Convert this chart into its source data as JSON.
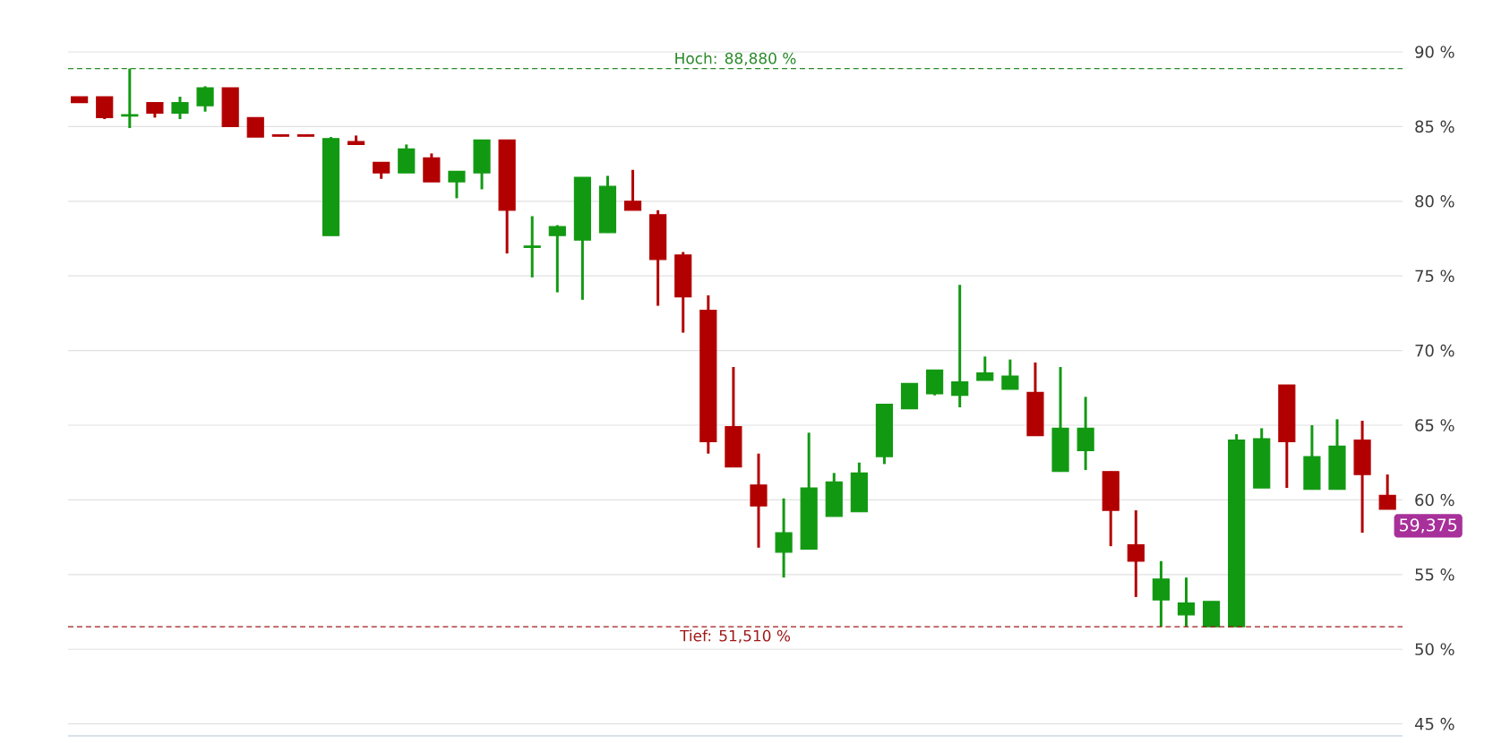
{
  "chart_data": {
    "type": "candlestick",
    "categories": [
      null,
      null,
      null,
      null,
      null,
      null,
      null,
      null,
      null,
      null,
      null,
      null,
      null,
      null,
      null,
      null,
      null,
      null,
      null,
      null,
      null,
      null,
      null,
      null,
      null,
      null,
      null,
      null,
      null,
      null,
      null,
      null,
      null,
      null,
      null,
      null,
      null,
      null,
      null,
      null,
      null,
      null,
      null,
      null,
      null,
      null,
      null,
      null,
      null,
      null,
      null,
      null,
      null
    ],
    "ohlc": [
      [
        87.0,
        87.0,
        86.6,
        86.6
      ],
      [
        87.0,
        87.0,
        85.5,
        85.6
      ],
      [
        85.7,
        88.88,
        84.9,
        85.8
      ],
      [
        86.6,
        86.6,
        85.6,
        85.9
      ],
      [
        85.9,
        87.0,
        85.5,
        86.6
      ],
      [
        86.4,
        87.7,
        86.0,
        87.6
      ],
      [
        87.6,
        87.6,
        85.0,
        85.0
      ],
      [
        85.6,
        85.6,
        84.3,
        84.3
      ],
      [
        84.45,
        84.45,
        84.35,
        84.35
      ],
      [
        84.45,
        84.45,
        84.35,
        84.35
      ],
      [
        77.7,
        84.3,
        77.7,
        84.2
      ],
      [
        84.0,
        84.4,
        83.8,
        83.8
      ],
      [
        82.6,
        82.6,
        81.5,
        81.9
      ],
      [
        81.9,
        83.8,
        81.9,
        83.5
      ],
      [
        82.9,
        83.2,
        81.3,
        81.3
      ],
      [
        81.3,
        82.0,
        80.2,
        82.0
      ],
      [
        81.9,
        84.1,
        80.8,
        84.1
      ],
      [
        84.1,
        84.1,
        76.5,
        79.4
      ],
      [
        76.9,
        79.0,
        74.9,
        77.0
      ],
      [
        77.7,
        78.4,
        73.9,
        78.3
      ],
      [
        77.4,
        81.6,
        73.4,
        81.6
      ],
      [
        77.9,
        81.7,
        77.9,
        81.0
      ],
      [
        80.0,
        82.1,
        79.4,
        79.4
      ],
      [
        79.1,
        79.4,
        73.0,
        76.1
      ],
      [
        76.4,
        76.6,
        71.2,
        73.6
      ],
      [
        72.7,
        73.7,
        63.1,
        63.9
      ],
      [
        64.9,
        68.9,
        62.2,
        62.2
      ],
      [
        61.0,
        63.1,
        56.8,
        59.6
      ],
      [
        56.5,
        60.1,
        54.8,
        57.8
      ],
      [
        56.7,
        64.5,
        56.7,
        60.8
      ],
      [
        58.9,
        61.8,
        58.9,
        61.2
      ],
      [
        59.2,
        62.5,
        59.2,
        61.8
      ],
      [
        62.9,
        66.4,
        62.4,
        66.4
      ],
      [
        66.1,
        67.8,
        66.1,
        67.8
      ],
      [
        67.1,
        68.7,
        67.0,
        68.7
      ],
      [
        67.0,
        74.4,
        66.2,
        67.9
      ],
      [
        68.0,
        69.6,
        68.0,
        68.5
      ],
      [
        67.4,
        69.4,
        67.4,
        68.3
      ],
      [
        67.2,
        69.2,
        64.3,
        64.3
      ],
      [
        61.9,
        68.9,
        61.9,
        64.8
      ],
      [
        63.3,
        66.9,
        62.0,
        64.8
      ],
      [
        61.9,
        61.9,
        56.9,
        59.3
      ],
      [
        57.0,
        59.3,
        53.5,
        55.9
      ],
      [
        53.3,
        55.9,
        51.51,
        54.7
      ],
      [
        52.3,
        54.8,
        51.51,
        53.1
      ],
      [
        51.51,
        53.2,
        51.51,
        53.2
      ],
      [
        51.51,
        64.4,
        51.51,
        64.0
      ],
      [
        60.8,
        64.8,
        60.8,
        64.1
      ],
      [
        67.7,
        67.7,
        60.8,
        63.9
      ],
      [
        60.7,
        65.0,
        60.7,
        62.9
      ],
      [
        60.7,
        65.4,
        60.7,
        63.6
      ],
      [
        64.0,
        65.3,
        57.8,
        61.7
      ],
      [
        60.3,
        61.7,
        59.375,
        59.375
      ]
    ],
    "colors": [
      "#b20000",
      "#b20000",
      "#129912",
      "#b20000",
      "#129912",
      "#129912",
      "#b20000",
      "#b20000",
      "#b20000",
      "#b20000",
      "#129912",
      "#b20000",
      "#b20000",
      "#129912",
      "#b20000",
      "#129912",
      "#129912",
      "#b20000",
      "#129912",
      "#129912",
      "#129912",
      "#129912",
      "#b20000",
      "#b20000",
      "#b20000",
      "#b20000",
      "#b20000",
      "#b20000",
      "#129912",
      "#129912",
      "#129912",
      "#129912",
      "#129912",
      "#129912",
      "#129912",
      "#129912",
      "#129912",
      "#129912",
      "#b20000",
      "#129912",
      "#129912",
      "#b20000",
      "#b20000",
      "#129912",
      "#129912",
      "#129912",
      "#129912",
      "#129912",
      "#b20000",
      "#129912",
      "#129912",
      "#b20000",
      "#b20000"
    ],
    "ylim": [
      44.2,
      90
    ],
    "yticks": [
      {
        "value": 45,
        "label": "45 %"
      },
      {
        "value": 50,
        "label": "50 %"
      },
      {
        "value": 55,
        "label": "55 %"
      },
      {
        "value": 60,
        "label": "60 %"
      },
      {
        "value": 65,
        "label": "65 %"
      },
      {
        "value": 70,
        "label": "70 %"
      },
      {
        "value": 75,
        "label": "75 %"
      },
      {
        "value": 80,
        "label": "80 %"
      },
      {
        "value": 85,
        "label": "85 %"
      },
      {
        "value": 90,
        "label": "90 %"
      }
    ],
    "grid": "y",
    "ref_lines": [
      {
        "axis": "y",
        "value": 88.88,
        "label": "Hoch: 88,880 %",
        "color": "#2a8a2a",
        "line_style": "dashed"
      },
      {
        "axis": "y",
        "value": 51.51,
        "label": "Tief: 51,510 %",
        "color": "#a01818",
        "line_style": "dashed"
      }
    ],
    "annotations": [
      "59,375"
    ]
  }
}
